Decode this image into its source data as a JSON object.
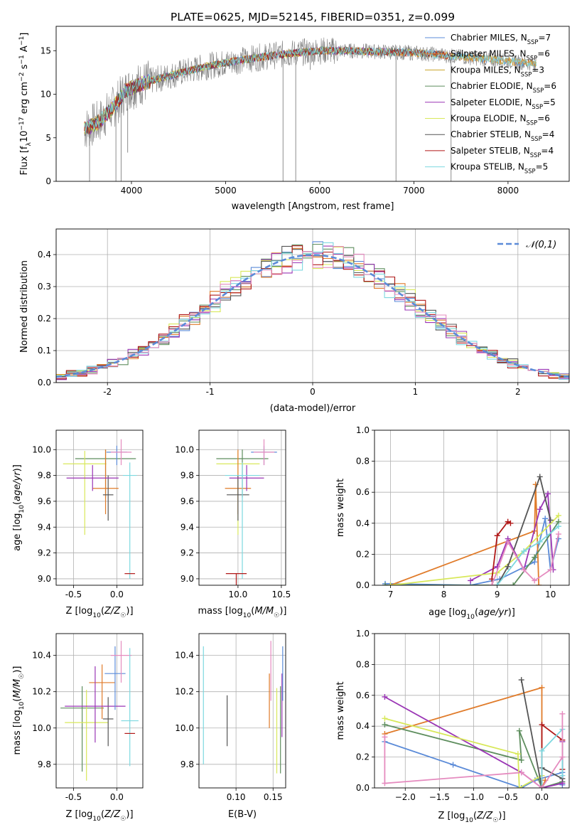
{
  "title": "PLATE=0625, MJD=52145, FIBERID=0351, z=0.099",
  "colors": {
    "Chabrier MILES": "#5b8bd8",
    "Salpeter MILES": "#e07b2a",
    "Kroupa MILES": "#c9a227",
    "Chabrier ELODIE": "#5e8e5e",
    "Salpeter ELODIE": "#9a35b5",
    "Kroupa ELODIE": "#d8e85a",
    "Chabrier STELIB": "#555555",
    "Salpeter STELIB": "#b01818",
    "Kroupa STELIB": "#7dd8e0",
    "pink": "#e58bbf",
    "data": "#808080",
    "normal": "#5b8bd8"
  },
  "chart_data": [
    {
      "type": "line",
      "panel": "spectrum",
      "title": "PLATE=0625, MJD=52145, FIBERID=0351, z=0.099",
      "xlabel": "wavelength [Angstrom, rest frame]",
      "ylabel": "Flux [f_λ10^-17 erg cm^-2 s^-1 A^-1]",
      "xlim": [
        3200,
        8650
      ],
      "ylim": [
        0,
        17.8
      ],
      "xticks": [
        4000,
        5000,
        6000,
        7000,
        8000
      ],
      "yticks": [
        0,
        5,
        10,
        15
      ],
      "legend": "top-right",
      "series": [
        {
          "name": "Chabrier MILES, N_SSP=7",
          "label_main": "Chabrier MILES, N",
          "label_sub": "SSP",
          "label_tail": "=7",
          "color": "#5b8bd8",
          "x_range": [
            3500,
            8300
          ]
        },
        {
          "name": "Salpeter MILES, N_SSP=6",
          "label_main": "Salpeter MILES, N",
          "label_sub": "SSP",
          "label_tail": "=6",
          "color": "#e07b2a",
          "x_range": [
            3500,
            8300
          ]
        },
        {
          "name": "Kroupa MILES, N_SSP=3",
          "label_main": "Kroupa MILES, N",
          "label_sub": "SSP",
          "label_tail": "=3",
          "color": "#c9a227",
          "x_range": [
            3500,
            8300
          ]
        },
        {
          "name": "Chabrier ELODIE, N_SSP=6",
          "label_main": "Chabrier ELODIE, N",
          "label_sub": "SSP",
          "label_tail": "=6",
          "color": "#5e8e5e",
          "x_range": [
            3500,
            6800
          ]
        },
        {
          "name": "Salpeter ELODIE, N_SSP=5",
          "label_main": "Salpeter ELODIE, N",
          "label_sub": "SSP",
          "label_tail": "=5",
          "color": "#9a35b5",
          "x_range": [
            3500,
            6800
          ]
        },
        {
          "name": "Kroupa ELODIE, N_SSP=6",
          "label_main": "Kroupa ELODIE, N",
          "label_sub": "SSP",
          "label_tail": "=6",
          "color": "#d8e85a",
          "x_range": [
            3500,
            6800
          ]
        },
        {
          "name": "Chabrier STELIB, N_SSP=4",
          "label_main": "Chabrier STELIB, N",
          "label_sub": "SSP",
          "label_tail": "=4",
          "color": "#555555",
          "x_range": [
            3500,
            7400
          ]
        },
        {
          "name": "Salpeter STELIB, N_SSP=4",
          "label_main": "Salpeter STELIB, N",
          "label_sub": "SSP",
          "label_tail": "=4",
          "color": "#b01818",
          "x_range": [
            3500,
            7400
          ]
        },
        {
          "name": "Kroupa STELIB, N_SSP=5",
          "label_main": "Kroupa STELIB, N",
          "label_sub": "SSP",
          "label_tail": "=5",
          "color": "#7dd8e0",
          "x_range": [
            3500,
            8300
          ]
        }
      ],
      "continuum": {
        "x": [
          3500,
          3650,
          3800,
          3950,
          4100,
          4300,
          4500,
          4800,
          5100,
          5400,
          5700,
          6000,
          6300,
          6600,
          6900,
          7200,
          7500,
          7800,
          8100,
          8300
        ],
        "y": [
          6.0,
          6.8,
          8.4,
          10.5,
          11.2,
          11.8,
          12.4,
          13.2,
          13.8,
          14.3,
          14.7,
          15.0,
          15.0,
          14.9,
          14.8,
          14.6,
          14.3,
          14.0,
          13.7,
          13.5
        ]
      },
      "dips": [
        {
          "x": 3555,
          "y": 0
        },
        {
          "x": 3835,
          "y": 0
        },
        {
          "x": 3890,
          "y": 0
        },
        {
          "x": 5610,
          "y": 0
        },
        {
          "x": 5745,
          "y": 0
        },
        {
          "x": 6810,
          "y": 0
        },
        {
          "x": 7395,
          "y": 0
        },
        {
          "x": 5900,
          "y": 12.8
        },
        {
          "x": 4570,
          "y": 12.4
        },
        {
          "x": 3960,
          "y": 3.3
        }
      ]
    },
    {
      "type": "bar",
      "panel": "residual-histogram",
      "xlabel": "(data-model)/error",
      "ylabel": "Normed distribution",
      "xlim": [
        -2.5,
        2.5
      ],
      "ylim": [
        0,
        0.48
      ],
      "xticks": [
        -2,
        -1,
        0,
        1,
        2
      ],
      "yticks": [
        0.0,
        0.1,
        0.2,
        0.3,
        0.4
      ],
      "legend": "top-right",
      "normal_label": "𝒩(0,1)",
      "bin_edges_range": [
        -2.5,
        2.5
      ],
      "n_bins": 50,
      "grid": true
    },
    {
      "type": "scatter",
      "panel": "age-vs-Z",
      "xlabel": "Z [log10(Z/Z☉)]",
      "ylabel": "age [log10(age/yr)]",
      "xlim": [
        -0.7,
        0.3
      ],
      "ylim": [
        8.95,
        10.15
      ],
      "xticks": [
        -0.5,
        0.0
      ],
      "yticks": [
        9.0,
        9.2,
        9.4,
        9.6,
        9.8,
        10.0
      ],
      "points": [
        {
          "x": -0.13,
          "y": 9.93,
          "xerr": 0.35,
          "yerr": [
            0.3,
            0.07
          ],
          "color": "#5e8e5e"
        },
        {
          "x": -0.37,
          "y": 9.89,
          "xerr": 0.25,
          "yerr": [
            0.55,
            0.1
          ],
          "color": "#d8e85a"
        },
        {
          "x": -0.13,
          "y": 9.7,
          "xerr": 0.15,
          "yerr": [
            0.2,
            0.3
          ],
          "color": "#e07b2a"
        },
        {
          "x": -0.1,
          "y": 9.65,
          "xerr": 0.06,
          "yerr": [
            0.2,
            0.15
          ],
          "color": "#555555"
        },
        {
          "x": -0.28,
          "y": 9.78,
          "xerr": 0.3,
          "yerr": [
            0.1,
            0.1
          ],
          "color": "#9a35b5"
        },
        {
          "x": 0.0,
          "y": 9.98,
          "xerr": 0.12,
          "yerr": [
            0.1,
            0.05
          ],
          "color": "#5b8bd8"
        },
        {
          "x": 0.05,
          "y": 9.98,
          "xerr": 0.12,
          "yerr": [
            0.1,
            0.1
          ],
          "color": "#e58bbf"
        },
        {
          "x": 0.15,
          "y": 9.8,
          "xerr": 0.08,
          "yerr": [
            0.8,
            0.1
          ],
          "color": "#7dd8e0"
        },
        {
          "x": 0.15,
          "y": 9.04,
          "xerr": 0.06,
          "yerr": [
            0.0,
            0.0
          ],
          "color": "#b01818"
        }
      ]
    },
    {
      "type": "scatter",
      "panel": "age-vs-mass",
      "xlabel": "mass [log10(M/M☉)]",
      "ylabel": "",
      "xlim": [
        9.55,
        10.55
      ],
      "ylim": [
        8.95,
        10.15
      ],
      "xticks": [
        10.0,
        10.5
      ],
      "yticks": [
        9.0,
        9.2,
        9.4,
        9.6,
        9.8,
        10.0
      ],
      "points": [
        {
          "x": 10.05,
          "y": 9.93,
          "xerr": 0.3,
          "yerr": [
            0.3,
            0.07
          ],
          "color": "#5e8e5e"
        },
        {
          "x": 10.0,
          "y": 9.89,
          "xerr": 0.25,
          "yerr": [
            0.55,
            0.1
          ],
          "color": "#d8e85a"
        },
        {
          "x": 10.0,
          "y": 9.7,
          "xerr": 0.15,
          "yerr": [
            0.2,
            0.3
          ],
          "color": "#e07b2a"
        },
        {
          "x": 10.0,
          "y": 9.65,
          "xerr": 0.13,
          "yerr": [
            0.2,
            0.15
          ],
          "color": "#555555"
        },
        {
          "x": 10.1,
          "y": 9.78,
          "xerr": 0.2,
          "yerr": [
            0.1,
            0.1
          ],
          "color": "#9a35b5"
        },
        {
          "x": 10.3,
          "y": 9.98,
          "xerr": 0.15,
          "yerr": [
            0.1,
            0.05
          ],
          "color": "#5b8bd8"
        },
        {
          "x": 10.3,
          "y": 9.98,
          "xerr": 0.12,
          "yerr": [
            0.1,
            0.1
          ],
          "color": "#e58bbf"
        },
        {
          "x": 10.05,
          "y": 9.8,
          "xerr": 0.2,
          "yerr": [
            0.8,
            0.1
          ],
          "color": "#7dd8e0"
        },
        {
          "x": 9.98,
          "y": 9.04,
          "xerr": 0.12,
          "yerr": [
            0.6,
            0.0
          ],
          "color": "#b01818"
        }
      ]
    },
    {
      "type": "line",
      "panel": "mass-weight-vs-age",
      "xlabel": "age [log10(age/yr)]",
      "ylabel": "mass weight",
      "xlim": [
        6.7,
        10.35
      ],
      "ylim": [
        0,
        1.0
      ],
      "xticks": [
        7,
        8,
        9,
        10
      ],
      "yticks": [
        0.0,
        0.2,
        0.4,
        0.6,
        0.8,
        1.0
      ],
      "series": [
        {
          "color": "#5b8bd8",
          "x": [
            6.9,
            8.5,
            9.05,
            9.7,
            9.9,
            10.0,
            10.15
          ],
          "y": [
            0.01,
            0.0,
            0.04,
            0.15,
            0.43,
            0.1,
            0.3
          ]
        },
        {
          "color": "#e07b2a",
          "x": [
            7.0,
            9.7,
            9.72,
            9.78
          ],
          "y": [
            0.0,
            0.35,
            0.65,
            0.0
          ]
        },
        {
          "color": "#5e8e5e",
          "x": [
            6.9,
            9.3,
            9.7,
            10.15
          ],
          "y": [
            0.0,
            0.0,
            0.18,
            0.41
          ]
        },
        {
          "color": "#9a35b5",
          "x": [
            8.5,
            9.0,
            9.2,
            9.5,
            9.8,
            9.95,
            10.05
          ],
          "y": [
            0.03,
            0.12,
            0.3,
            0.1,
            0.49,
            0.59,
            0.1
          ]
        },
        {
          "color": "#d8e85a",
          "x": [
            7.0,
            9.0,
            9.5,
            10.15
          ],
          "y": [
            0.0,
            0.08,
            0.22,
            0.45
          ]
        },
        {
          "color": "#555555",
          "x": [
            9.0,
            9.2,
            9.8,
            10.0
          ],
          "y": [
            0.0,
            0.12,
            0.7,
            0.42
          ]
        },
        {
          "color": "#b01818",
          "x": [
            8.9,
            9.0,
            9.2,
            9.25
          ],
          "y": [
            0.04,
            0.32,
            0.41,
            0.4
          ]
        },
        {
          "color": "#7dd8e0",
          "x": [
            9.0,
            9.5,
            9.8,
            10.15
          ],
          "y": [
            0.0,
            0.22,
            0.28,
            0.38
          ]
        },
        {
          "color": "#e58bbf",
          "x": [
            8.9,
            9.2,
            9.5,
            9.7,
            10.0,
            10.15
          ],
          "y": [
            0.0,
            0.28,
            0.1,
            0.03,
            0.1,
            0.33
          ]
        }
      ]
    },
    {
      "type": "scatter",
      "panel": "mass-vs-Z",
      "xlabel": "Z [log10(Z/Z☉)]",
      "ylabel": "mass [log10(M/M☉)]",
      "xlim": [
        -0.7,
        0.3
      ],
      "ylim": [
        9.67,
        10.52
      ],
      "xticks": [
        -0.5,
        0.0
      ],
      "yticks": [
        9.8,
        10.0,
        10.2,
        10.4
      ],
      "points": [
        {
          "x": -0.4,
          "y": 10.11,
          "xerr": 0.25,
          "yerr": [
            0.35,
            0.12
          ],
          "color": "#5e8e5e"
        },
        {
          "x": -0.35,
          "y": 10.03,
          "xerr": 0.25,
          "yerr": [
            0.32,
            0.18
          ],
          "color": "#d8e85a"
        },
        {
          "x": -0.17,
          "y": 10.25,
          "xerr": 0.15,
          "yerr": [
            0.2,
            0.1
          ],
          "color": "#e07b2a"
        },
        {
          "x": -0.1,
          "y": 10.05,
          "xerr": 0.06,
          "yerr": [
            0.15,
            0.12
          ],
          "color": "#555555"
        },
        {
          "x": -0.25,
          "y": 10.12,
          "xerr": 0.35,
          "yerr": [
            0.2,
            0.22
          ],
          "color": "#9a35b5"
        },
        {
          "x": -0.02,
          "y": 10.3,
          "xerr": 0.12,
          "yerr": [
            0.2,
            0.15
          ],
          "color": "#5b8bd8"
        },
        {
          "x": 0.05,
          "y": 10.4,
          "xerr": 0.12,
          "yerr": [
            0.15,
            0.08
          ],
          "color": "#e58bbf"
        },
        {
          "x": 0.15,
          "y": 10.04,
          "xerr": 0.1,
          "yerr": [
            0.25,
            0.4
          ],
          "color": "#7dd8e0"
        },
        {
          "x": 0.15,
          "y": 9.97,
          "xerr": 0.06,
          "yerr": [
            0.0,
            0.0
          ],
          "color": "#b01818"
        }
      ]
    },
    {
      "type": "scatter",
      "panel": "mass-vs-EBV",
      "xlabel": "E(B-V)",
      "ylabel": "",
      "xlim": [
        0.05,
        0.167
      ],
      "ylim": [
        9.67,
        10.52
      ],
      "xticks": [
        0.1,
        0.15
      ],
      "yticks": [
        9.8,
        10.0,
        10.2,
        10.4
      ],
      "points": [
        {
          "x": 0.056,
          "y": 10.0,
          "yerr": [
            0.2,
            0.45
          ],
          "color": "#7dd8e0"
        },
        {
          "x": 0.088,
          "y": 10.0,
          "yerr": [
            0.1,
            0.18
          ],
          "color": "#555555"
        },
        {
          "x": 0.145,
          "y": 10.15,
          "yerr": [
            0.15,
            0.15
          ],
          "color": "#e07b2a"
        },
        {
          "x": 0.147,
          "y": 10.3,
          "yerr": [
            0.15,
            0.18
          ],
          "color": "#e58bbf"
        },
        {
          "x": 0.155,
          "y": 10.0,
          "yerr": [
            0.25,
            0.22
          ],
          "color": "#d8e85a"
        },
        {
          "x": 0.16,
          "y": 10.05,
          "yerr": [
            0.3,
            0.18
          ],
          "color": "#5e8e5e"
        },
        {
          "x": 0.162,
          "y": 10.15,
          "yerr": [
            0.2,
            0.15
          ],
          "color": "#9a35b5"
        },
        {
          "x": 0.163,
          "y": 10.3,
          "yerr": [
            0.15,
            0.15
          ],
          "color": "#5b8bd8"
        }
      ]
    },
    {
      "type": "line",
      "panel": "mass-weight-vs-Z",
      "xlabel": "Z [log10(Z/Z☉)]",
      "ylabel": "mass weight",
      "xlim": [
        -2.45,
        0.4
      ],
      "ylim": [
        0,
        1.0
      ],
      "xticks": [
        -2.0,
        -1.5,
        -1.0,
        -0.5,
        0.0
      ],
      "yticks": [
        0.0,
        0.2,
        0.4,
        0.6,
        0.8,
        1.0
      ],
      "series": [
        {
          "color": "#5b8bd8",
          "x": [
            -2.3,
            -1.3,
            -0.3,
            -0.1,
            0.3,
            0.3
          ],
          "y": [
            0.3,
            0.15,
            0.0,
            0.05,
            0.1,
            0.02
          ]
        },
        {
          "color": "#e07b2a",
          "x": [
            -2.3,
            0.0,
            0.0,
            0.05
          ],
          "y": [
            0.35,
            0.65,
            0.0,
            0.05
          ]
        },
        {
          "color": "#5e8e5e",
          "x": [
            -2.3,
            -0.3,
            -0.33,
            0.0,
            0.3
          ],
          "y": [
            0.41,
            0.18,
            0.37,
            0.0,
            0.04
          ]
        },
        {
          "color": "#9a35b5",
          "x": [
            -2.3,
            -0.3,
            0.0,
            0.3,
            0.3
          ],
          "y": [
            0.59,
            0.1,
            0.0,
            0.03,
            0.3
          ]
        },
        {
          "color": "#d8e85a",
          "x": [
            -2.3,
            -0.35,
            -0.33,
            0.0
          ],
          "y": [
            0.45,
            0.22,
            0.0,
            0.08
          ]
        },
        {
          "color": "#555555",
          "x": [
            -0.3,
            0.0,
            0.0,
            0.3
          ],
          "y": [
            0.7,
            0.0,
            0.13,
            0.06
          ]
        },
        {
          "color": "#b01818",
          "x": [
            0.0,
            0.0,
            0.3,
            0.3
          ],
          "y": [
            0.0,
            0.41,
            0.31,
            0.12
          ]
        },
        {
          "color": "#7dd8e0",
          "x": [
            0.0,
            0.0,
            0.3,
            0.3
          ],
          "y": [
            0.0,
            0.24,
            0.38,
            0.08
          ]
        },
        {
          "color": "#e58bbf",
          "x": [
            -2.3,
            -2.3,
            -0.3,
            0.0,
            0.3,
            0.3
          ],
          "y": [
            0.33,
            0.03,
            0.1,
            0.0,
            0.2,
            0.48
          ]
        }
      ]
    }
  ]
}
